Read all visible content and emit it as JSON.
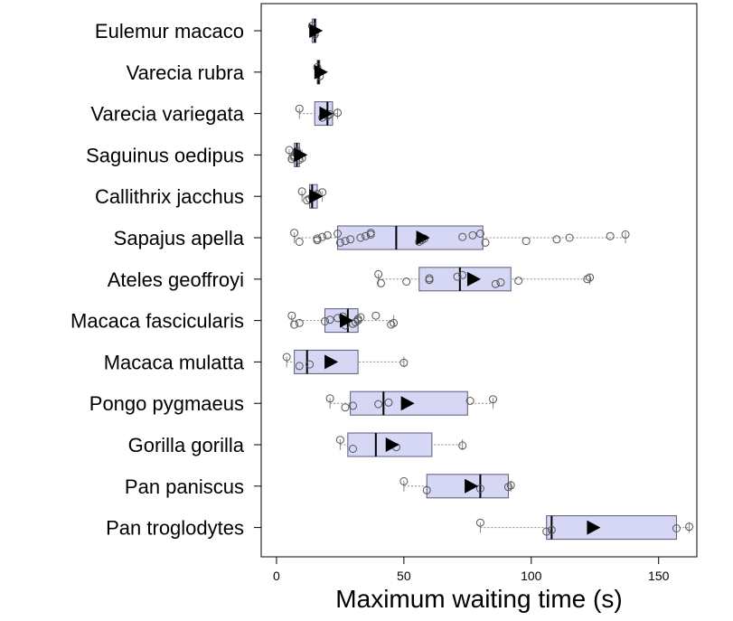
{
  "chart_data": {
    "type": "boxplot",
    "xlabel": "Maximum waiting time (s)",
    "xlim": [
      -6,
      165
    ],
    "xticks": [
      0,
      50,
      100,
      150
    ],
    "grid": false,
    "mean_marker": "right-pointing triangle",
    "colors": {
      "box_fill": "#d6d6f5",
      "box_stroke": "#5a5a7a",
      "whisker": "#888888",
      "point_stroke": "#555555",
      "mean": "#000000"
    },
    "species": [
      {
        "name": "Eulemur macaco",
        "q1": 14,
        "median": 15,
        "q3": 15.5,
        "wmin": 14,
        "wmax": 15.5,
        "mean": 15,
        "points": [
          14,
          15,
          15
        ]
      },
      {
        "name": "Varecia rubra",
        "q1": 16,
        "median": 16.5,
        "q3": 17,
        "wmin": 16,
        "wmax": 17,
        "mean": 17,
        "points": [
          16,
          17
        ]
      },
      {
        "name": "Varecia variegata",
        "q1": 15,
        "median": 20,
        "q3": 22,
        "wmin": 9,
        "wmax": 24,
        "mean": 19,
        "points": [
          9,
          18,
          20,
          21,
          24
        ]
      },
      {
        "name": "Saguinus oedipus",
        "q1": 7,
        "median": 8,
        "q3": 9,
        "wmin": 5,
        "wmax": 10,
        "mean": 9,
        "points": [
          5,
          6,
          7,
          7,
          8,
          8,
          8,
          9,
          10
        ]
      },
      {
        "name": "Callithrix jacchus",
        "q1": 13,
        "median": 14,
        "q3": 16,
        "wmin": 10,
        "wmax": 18,
        "mean": 15,
        "points": [
          10,
          12,
          13,
          14,
          15,
          16,
          18
        ]
      },
      {
        "name": "Sapajus apella",
        "q1": 24,
        "median": 47,
        "q3": 81,
        "wmin": 7,
        "wmax": 137,
        "mean": 57,
        "points": [
          7,
          9,
          16,
          16,
          18,
          20,
          24,
          25,
          27,
          29,
          33,
          35,
          37,
          37,
          56,
          57,
          58,
          73,
          77,
          80,
          82,
          98,
          110,
          115,
          131,
          137
        ]
      },
      {
        "name": "Ateles geoffroyi",
        "q1": 56,
        "median": 72,
        "q3": 92,
        "wmin": 40,
        "wmax": 123,
        "mean": 77,
        "points": [
          40,
          41,
          51,
          60,
          60,
          71,
          73,
          86,
          88,
          95,
          122,
          123
        ]
      },
      {
        "name": "Macaca fascicularis",
        "q1": 19,
        "median": 28,
        "q3": 32,
        "wmin": 6,
        "wmax": 46,
        "mean": 27,
        "points": [
          6,
          7,
          9,
          19,
          21,
          24,
          26,
          27,
          30,
          31,
          32,
          32,
          33,
          39,
          45,
          46
        ]
      },
      {
        "name": "Macaca mulatta",
        "q1": 7,
        "median": 12,
        "q3": 32,
        "wmin": 4,
        "wmax": 50,
        "mean": 21,
        "points": [
          4,
          9,
          13,
          50
        ]
      },
      {
        "name": "Pongo pygmaeus",
        "q1": 29,
        "median": 42,
        "q3": 75,
        "wmin": 21,
        "wmax": 85,
        "mean": 51,
        "points": [
          21,
          27,
          30,
          40,
          44,
          76,
          85
        ]
      },
      {
        "name": "Gorilla gorilla",
        "q1": 28,
        "median": 39,
        "q3": 61,
        "wmin": 25,
        "wmax": 73,
        "mean": 45,
        "points": [
          25,
          30,
          47,
          73
        ]
      },
      {
        "name": "Pan paniscus",
        "q1": 59,
        "median": 80,
        "q3": 91,
        "wmin": 50,
        "wmax": 92,
        "mean": 76,
        "points": [
          50,
          59,
          80,
          91,
          92
        ]
      },
      {
        "name": "Pan troglodytes",
        "q1": 106,
        "median": 108,
        "q3": 157,
        "wmin": 80,
        "wmax": 162,
        "mean": 124,
        "points": [
          80,
          106,
          108,
          157,
          162
        ]
      }
    ]
  }
}
